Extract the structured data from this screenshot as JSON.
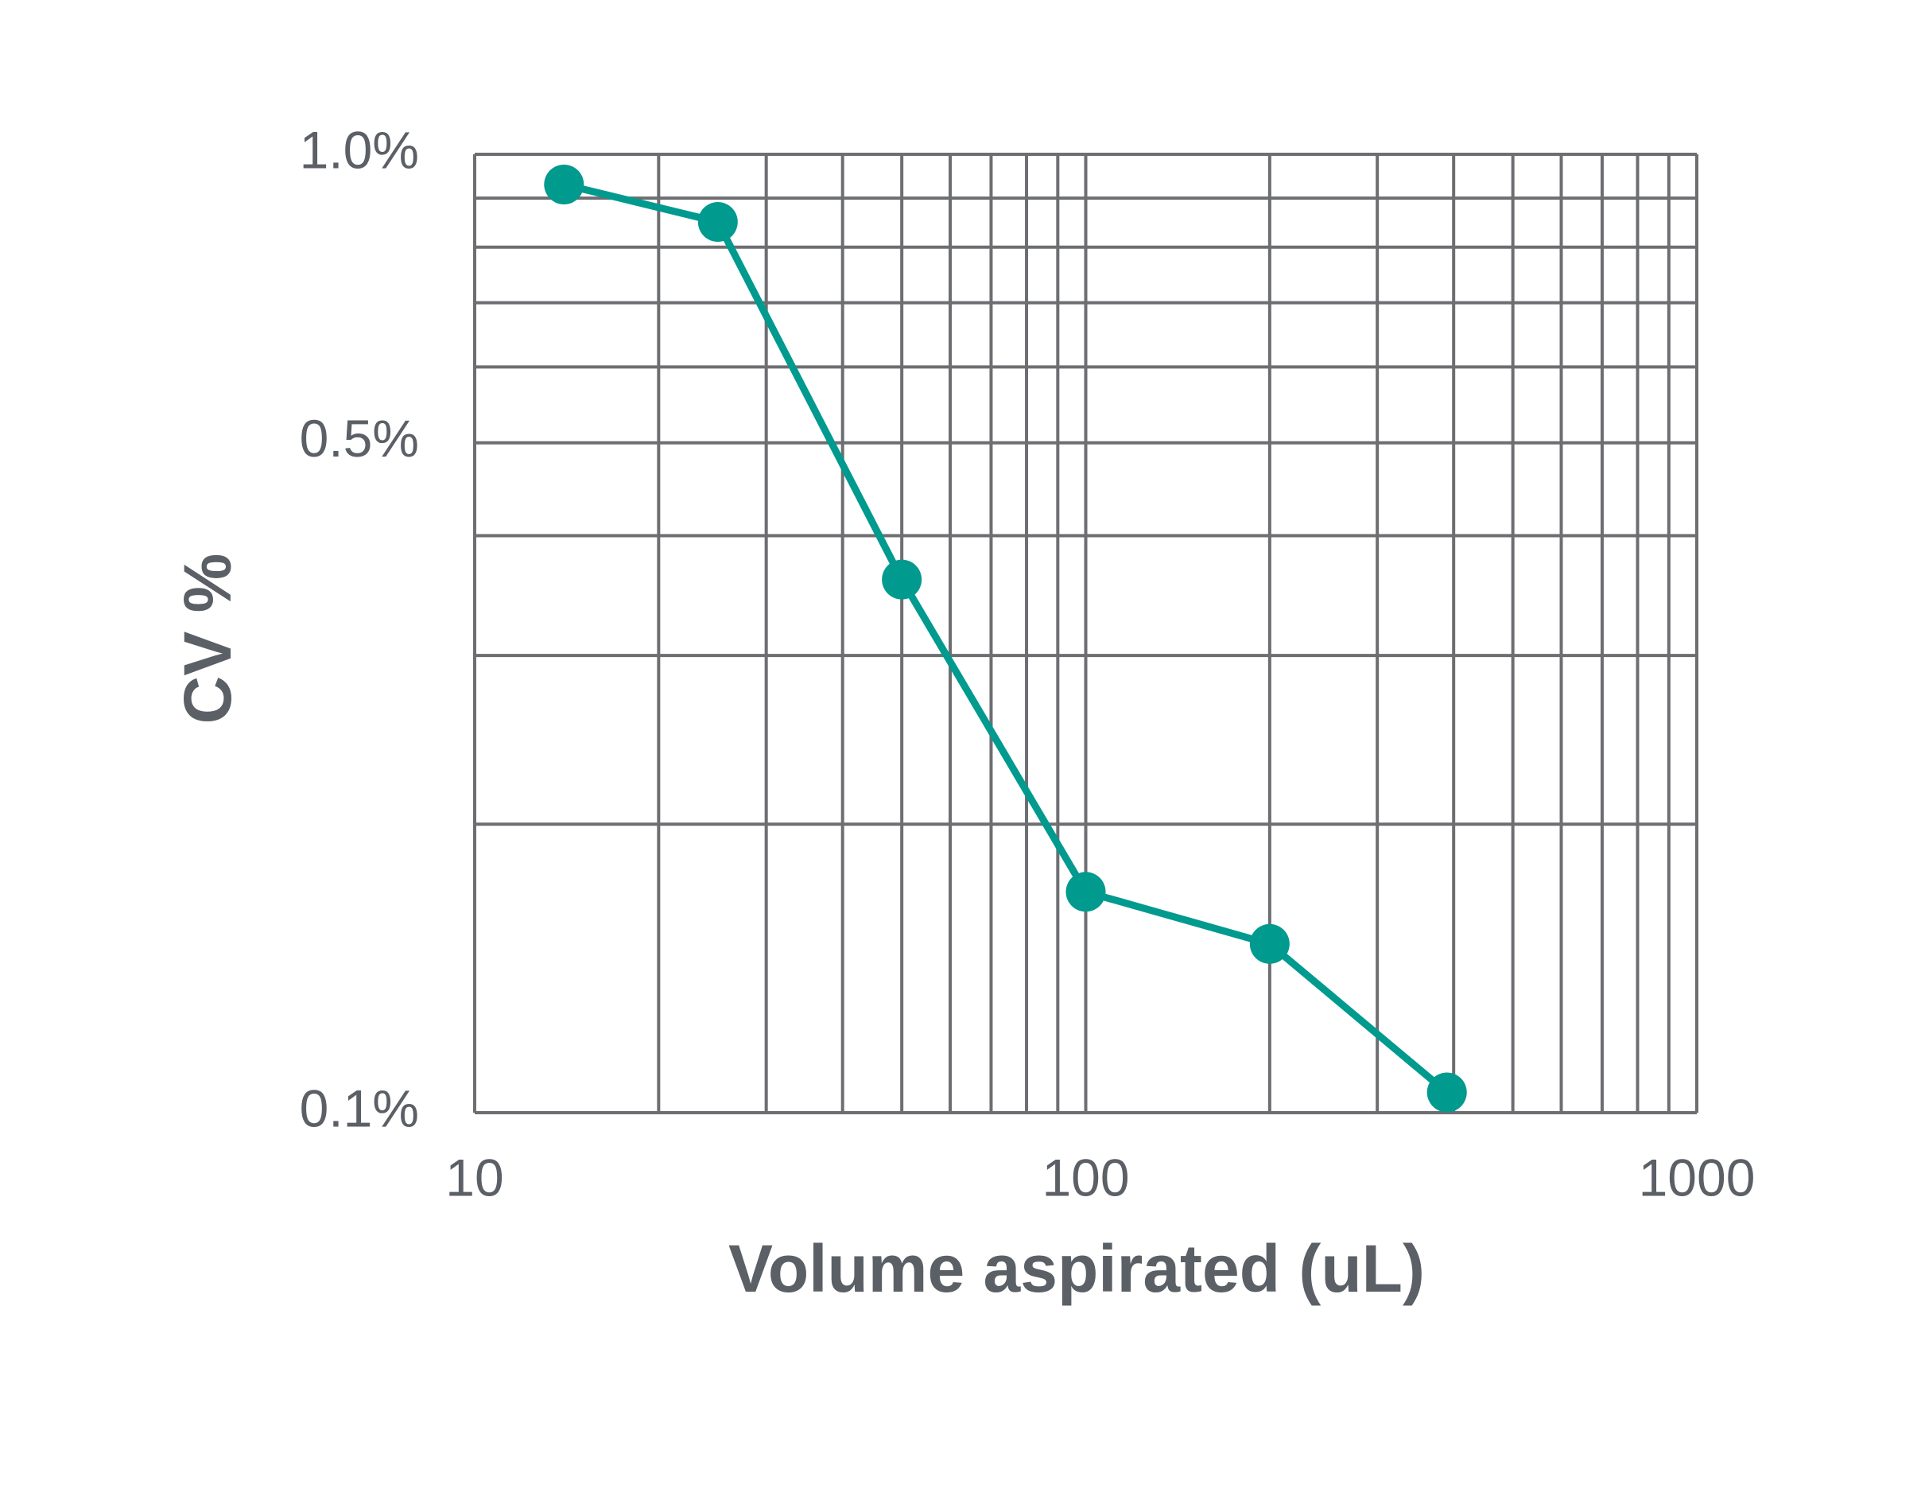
{
  "chart_data": {
    "type": "line",
    "x_label": "Volume aspirated (uL)",
    "y_label": "CV %",
    "xscale": "log",
    "yscale": "log",
    "grid": true,
    "xlim": [
      10,
      1000
    ],
    "ylim": [
      0.1,
      1
    ],
    "xticks": [
      10,
      100,
      1000
    ],
    "xminorticks": [
      20,
      30,
      40,
      50,
      60,
      70,
      80,
      90,
      200,
      300,
      400,
      500,
      600,
      700,
      800,
      900
    ],
    "yticks": [
      {
        "value": 0.1,
        "label": "0.1%"
      },
      {
        "value": 0.5,
        "label": "0.5%"
      },
      {
        "value": 1,
        "label": "1.0%"
      }
    ],
    "yminorticks": [
      0.2,
      0.3,
      0.4,
      0.6,
      0.7,
      0.8,
      0.9
    ],
    "grid_color": "#6d6e71",
    "series": [
      {
        "color": "#009a8e",
        "x": [
          14,
          25,
          50,
          100,
          200,
          390
        ],
        "values": [
          0.93,
          0.85,
          0.36,
          0.17,
          0.15,
          0.105
        ]
      }
    ]
  }
}
